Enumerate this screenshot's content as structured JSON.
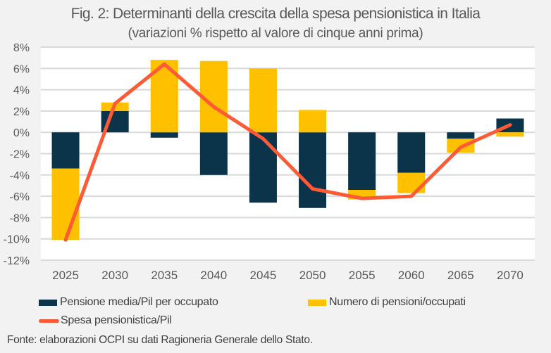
{
  "chart_data": {
    "type": "bar",
    "subtype": "stacked-bar-with-line",
    "title": "Fig. 2: Determinanti della crescita della spesa pensionistica in Italia",
    "subtitle": "(variazioni % rispetto al valore di cinque anni prima)",
    "xlabel": "",
    "ylabel": "",
    "categories": [
      "2025",
      "2030",
      "2035",
      "2040",
      "2045",
      "2050",
      "2055",
      "2060",
      "2065",
      "2070"
    ],
    "ylim": [
      -12,
      8
    ],
    "yticks": [
      8,
      6,
      4,
      2,
      0,
      -2,
      -4,
      -6,
      -8,
      -10,
      -12
    ],
    "ytick_labels": [
      "8%",
      "6%",
      "4%",
      "2%",
      "0%",
      "-2%",
      "-4%",
      "-6%",
      "-8%",
      "-10%",
      "-12%"
    ],
    "grid": true,
    "legend_position": "bottom",
    "series": [
      {
        "name": "Pensione media/Pil per occupato",
        "kind": "bar",
        "color": "#0b3349",
        "values": [
          -3.4,
          2.0,
          -0.5,
          -4.0,
          -6.6,
          -7.1,
          -5.4,
          -3.8,
          -0.6,
          1.3
        ]
      },
      {
        "name": "Numero di pensioni/occupati",
        "kind": "bar",
        "color": "#ffc000",
        "values": [
          -6.7,
          0.8,
          6.8,
          6.7,
          6.0,
          2.1,
          -0.9,
          -1.9,
          -1.3,
          -0.4
        ]
      },
      {
        "name": "Spesa pensionistica/Pil",
        "kind": "line",
        "color": "#ff5a36",
        "values": [
          -10.1,
          2.7,
          6.4,
          2.4,
          -0.6,
          -5.3,
          -6.2,
          -6.0,
          -1.4,
          0.7
        ]
      }
    ]
  },
  "source_note": "Fonte: elaborazioni OCPI su dati Ragioneria Generale dello Stato.",
  "colors": {
    "background": "#f2f2f2",
    "plot_background": "#ffffff",
    "gridline": "#d9d9d9",
    "text": "#595959"
  }
}
